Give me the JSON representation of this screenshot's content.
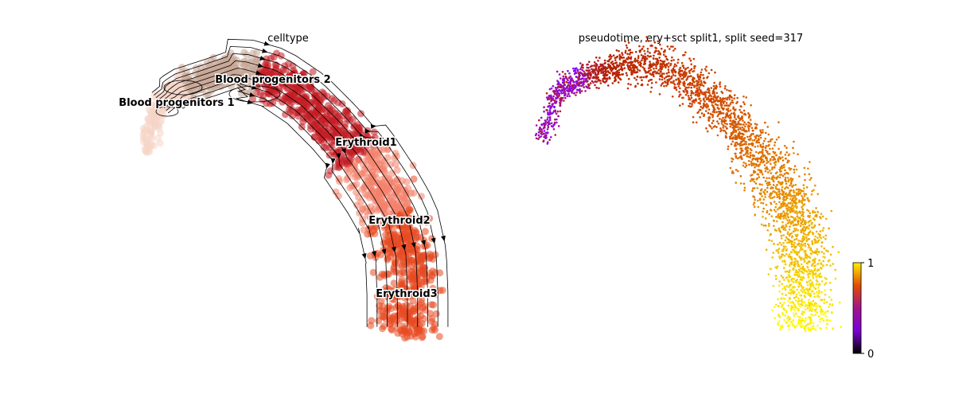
{
  "chart_data": [
    {
      "type": "scatter",
      "title": "celltype",
      "overlay": "velocity streamlines",
      "axes": "off",
      "categories": [
        {
          "name": "Blood progenitors 1",
          "color": "#f6d6c8"
        },
        {
          "name": "Blood progenitors 2",
          "color": "#c9a898"
        },
        {
          "name": "Erythroid1",
          "color": "#c41d24"
        },
        {
          "name": "Erythroid2",
          "color": "#f4816b"
        },
        {
          "name": "Erythroid3",
          "color": "#e84a23"
        }
      ]
    },
    {
      "type": "scatter",
      "title": "pseudotime, ery+sct split1, split seed=317",
      "axes": "off",
      "colormap": "gnuplot",
      "colorbar": {
        "min": 0,
        "max": 1,
        "ticks": [
          "0",
          "1"
        ]
      }
    }
  ]
}
